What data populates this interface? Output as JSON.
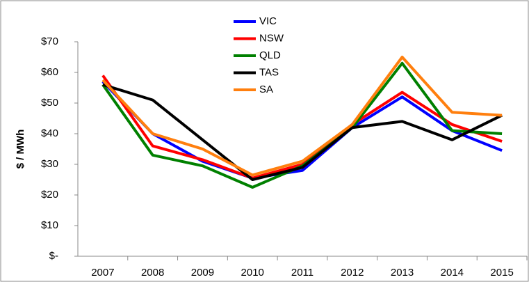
{
  "chart_data": {
    "type": "line",
    "categories": [
      "2007",
      "2008",
      "2009",
      "2010",
      "2011",
      "2012",
      "2013",
      "2014",
      "2015"
    ],
    "series": [
      {
        "name": "VIC",
        "color": "#0000ff",
        "values": [
          57,
          40,
          31,
          25.5,
          28,
          42,
          52,
          41,
          34.5
        ]
      },
      {
        "name": "NSW",
        "color": "#ff0000",
        "values": [
          59,
          36,
          31.5,
          25.5,
          30,
          43,
          53.5,
          43,
          37.5
        ]
      },
      {
        "name": "QLD",
        "color": "#008000",
        "values": [
          56,
          33,
          29.5,
          22.5,
          29.5,
          42,
          63,
          41,
          40
        ]
      },
      {
        "name": "TAS",
        "color": "#000000",
        "values": [
          56,
          51,
          38,
          25,
          29,
          42,
          44,
          38,
          46
        ]
      },
      {
        "name": "SA",
        "color": "#ff7f0e",
        "values": [
          57.5,
          40,
          35,
          26.5,
          31,
          43,
          65,
          47,
          46
        ]
      }
    ],
    "ylabel": "$ / MWh",
    "ylim": [
      0,
      70
    ],
    "yticks": [
      {
        "value": 0,
        "label": "$-"
      },
      {
        "value": 10,
        "label": "$10"
      },
      {
        "value": 20,
        "label": "$20"
      },
      {
        "value": 30,
        "label": "$30"
      },
      {
        "value": 40,
        "label": "$40"
      },
      {
        "value": 50,
        "label": "$50"
      },
      {
        "value": 60,
        "label": "$60"
      },
      {
        "value": 70,
        "label": "$70"
      }
    ],
    "grid": false,
    "legend": "top"
  }
}
